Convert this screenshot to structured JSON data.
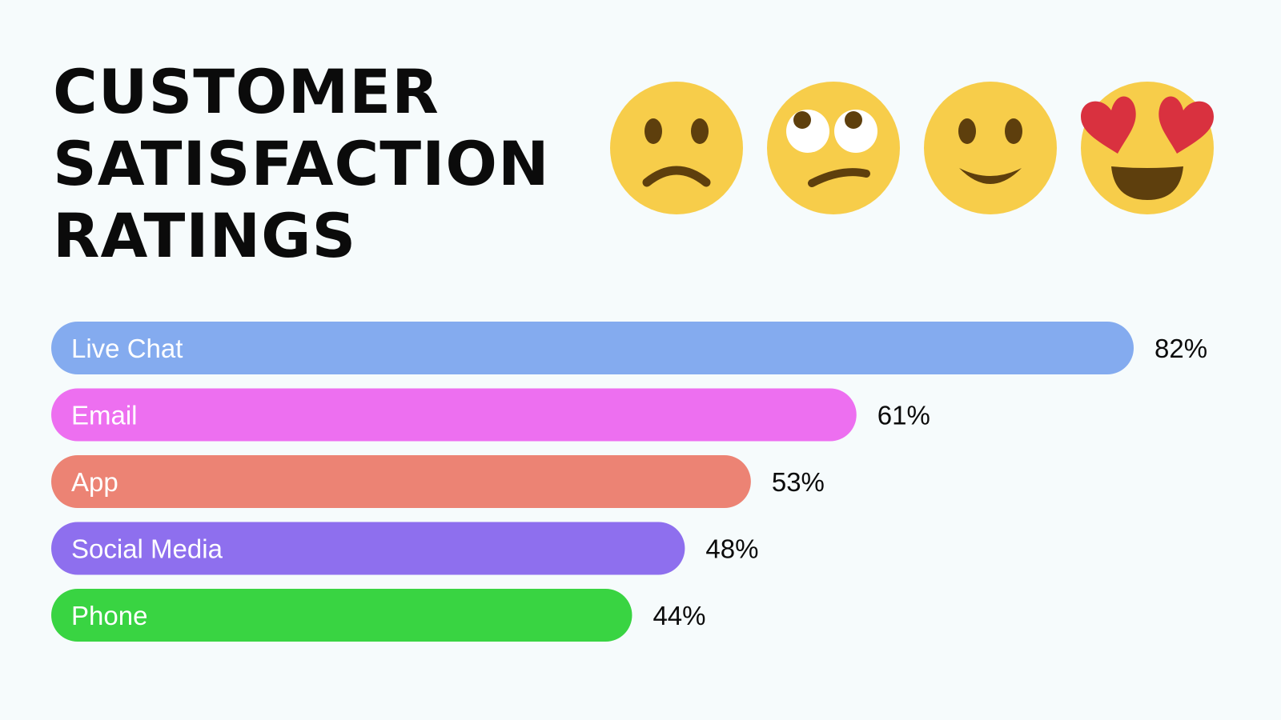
{
  "title_lines": [
    "CUSTOMER",
    "SATISFACTION",
    "RATINGS"
  ],
  "emojis": [
    "frowning-face-icon",
    "eye-roll-face-icon",
    "smiling-face-icon",
    "heart-eyes-face-icon"
  ],
  "colors": {
    "background": "#f6fbfc",
    "emoji_face": "#f7cd4a",
    "emoji_feature": "#5e3f0d",
    "heart": "#d9313f"
  },
  "chart_data": {
    "type": "bar",
    "orientation": "horizontal",
    "title": "CUSTOMER SATISFACTION RATINGS",
    "categories": [
      "Live Chat",
      "Email",
      "App",
      "Social Media",
      "Phone"
    ],
    "values": [
      82,
      61,
      53,
      48,
      44
    ],
    "value_labels": [
      "82%",
      "61%",
      "53%",
      "48%",
      "44%"
    ],
    "colors": [
      "#84abef",
      "#ed6ff0",
      "#ec8374",
      "#8e6fee",
      "#39d442"
    ],
    "unit": "%",
    "xlim": [
      0,
      100
    ],
    "grid": false,
    "legend": "none"
  }
}
